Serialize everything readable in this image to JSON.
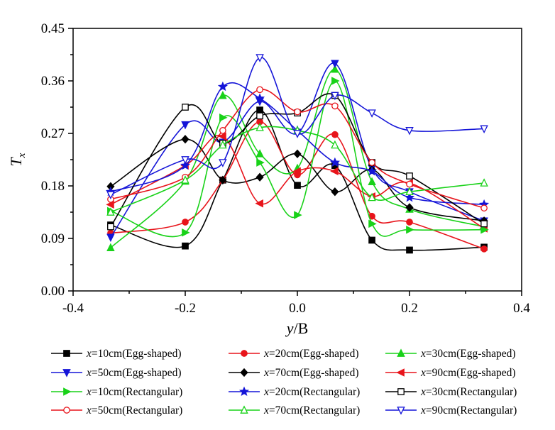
{
  "chart_data": {
    "type": "line",
    "title": "",
    "xlabel_italic": "y",
    "xlabel_rest": "/B",
    "ylabel_main": "T",
    "ylabel_sub": "x",
    "xlim": [
      -0.4,
      0.4
    ],
    "ylim": [
      0.0,
      0.45
    ],
    "xticks": [
      -0.4,
      -0.2,
      0.0,
      0.2,
      0.4
    ],
    "xtick_labels": [
      "-0.4",
      "-0.2",
      "0.0",
      "0.2",
      "0.4"
    ],
    "yticks": [
      0.0,
      0.09,
      0.18,
      0.27,
      0.36,
      0.45
    ],
    "ytick_labels": [
      "0.00",
      "0.09",
      "0.18",
      "0.27",
      "0.36",
      "0.45"
    ],
    "x": [
      -0.333,
      -0.2,
      -0.133,
      -0.067,
      0.0,
      0.067,
      0.133,
      0.2,
      0.333
    ],
    "legend_position": "bottom",
    "series": [
      {
        "label_var": "x",
        "label_rest": "=10cm(Egg-shaped)",
        "color": "#000000",
        "marker": "square-filled",
        "values": [
          0.113,
          0.077,
          0.19,
          0.31,
          0.181,
          0.215,
          0.087,
          0.07,
          0.075
        ]
      },
      {
        "label_var": "x",
        "label_rest": "=20cm(Egg-shaped)",
        "color": "#e8141b",
        "marker": "circle-filled",
        "values": [
          0.099,
          0.118,
          0.19,
          0.29,
          0.199,
          0.268,
          0.128,
          0.118,
          0.072
        ]
      },
      {
        "label_var": "x",
        "label_rest": "=30cm(Egg-shaped)",
        "color": "#19d219",
        "marker": "triangle-up-filled",
        "values": [
          0.074,
          0.188,
          0.335,
          0.235,
          0.21,
          0.38,
          0.187,
          0.14,
          0.11
        ]
      },
      {
        "label_var": "x",
        "label_rest": "=50cm(Egg-shaped)",
        "color": "#1515d8",
        "marker": "triangle-down-filled",
        "values": [
          0.092,
          0.285,
          0.255,
          0.325,
          0.27,
          0.39,
          0.21,
          0.17,
          0.12
        ]
      },
      {
        "label_var": "x",
        "label_rest": "=70cm(Egg-shaped)",
        "color": "#000000",
        "marker": "diamond-filled",
        "values": [
          0.179,
          0.26,
          0.19,
          0.195,
          0.235,
          0.17,
          0.208,
          0.143,
          0.12
        ]
      },
      {
        "label_var": "x",
        "label_rest": "=90cm(Egg-shaped)",
        "color": "#e8141b",
        "marker": "triangle-left-filled",
        "values": [
          0.148,
          0.215,
          0.265,
          0.15,
          0.205,
          0.205,
          0.162,
          0.185,
          0.107
        ]
      },
      {
        "label_var": "x",
        "label_rest": "=10cm(Rectangular)",
        "color": "#19d219",
        "marker": "triangle-right-filled",
        "values": [
          0.137,
          0.1,
          0.297,
          0.22,
          0.13,
          0.36,
          0.115,
          0.105,
          0.105
        ]
      },
      {
        "label_var": "x",
        "label_rest": "=20cm(Rectangular)",
        "color": "#1515d8",
        "marker": "star-filled",
        "values": [
          0.17,
          0.215,
          0.35,
          0.33,
          0.275,
          0.22,
          0.205,
          0.16,
          0.148
        ]
      },
      {
        "label_var": "x",
        "label_rest": "=30cm(Rectangular)",
        "color": "#000000",
        "marker": "square-open",
        "values": [
          0.11,
          0.315,
          0.253,
          0.3,
          0.305,
          0.335,
          0.22,
          0.197,
          0.115
        ]
      },
      {
        "label_var": "x",
        "label_rest": "=50cm(Rectangular)",
        "color": "#e8141b",
        "marker": "circle-open",
        "values": [
          0.157,
          0.195,
          0.275,
          0.345,
          0.307,
          0.317,
          0.22,
          0.183,
          0.142
        ]
      },
      {
        "label_var": "x",
        "label_rest": "=70cm(Rectangular)",
        "color": "#19d219",
        "marker": "triangle-up-open",
        "values": [
          0.135,
          0.19,
          0.25,
          0.28,
          0.275,
          0.25,
          0.16,
          0.17,
          0.185
        ]
      },
      {
        "label_var": "x",
        "label_rest": "=90cm(Rectangular)",
        "color": "#1515d8",
        "marker": "triangle-down-open",
        "values": [
          0.165,
          0.225,
          0.22,
          0.4,
          0.27,
          0.335,
          0.305,
          0.275,
          0.278
        ]
      }
    ]
  }
}
